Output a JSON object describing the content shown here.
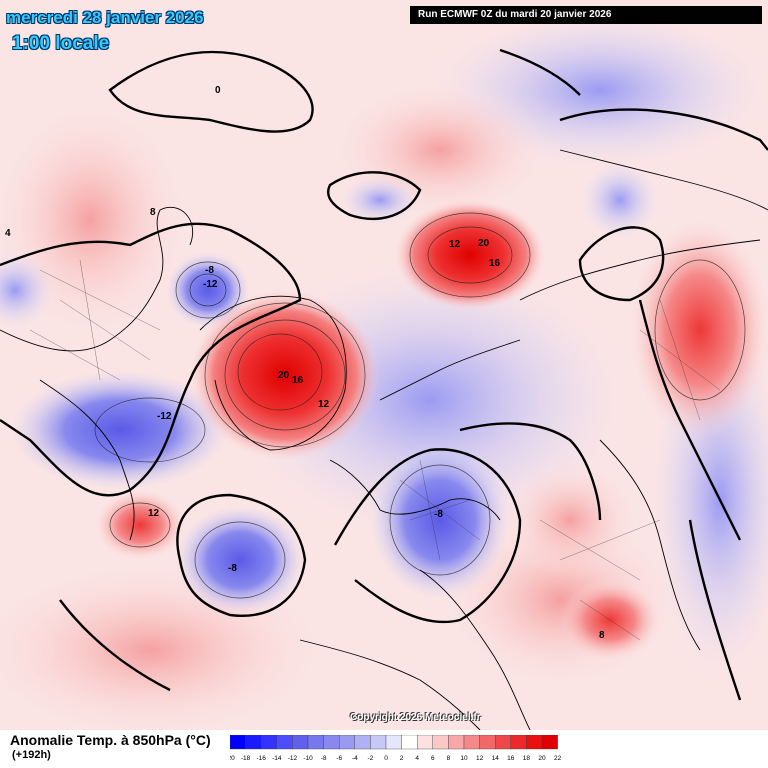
{
  "header": {
    "date_title": "mercredi 28 janvier 2026",
    "local_time": "1:00 locale",
    "run_info": "Run ECMWF 0Z du mardi 20 janvier 2026"
  },
  "copyright": "Copyright 2026 Meteociel.fr",
  "legend": {
    "title": "Anomalie Temp. à 850hPa (°C)",
    "lead_time": "(+192h)",
    "ticks": [
      "-20",
      "-18",
      "-16",
      "-14",
      "-12",
      "-10",
      "-8",
      "-6",
      "-4",
      "-2",
      "0",
      "2",
      "4",
      "6",
      "8",
      "10",
      "12",
      "14",
      "16",
      "18",
      "20",
      "22"
    ],
    "colors": [
      "#0000ff",
      "#1a1aff",
      "#3333ff",
      "#4d4dff",
      "#6060ee",
      "#7777ee",
      "#8888ee",
      "#9a9af2",
      "#b0b0f5",
      "#c8c8f8",
      "#e6e6fb",
      "#ffffff",
      "#fde0e0",
      "#fbc8c8",
      "#f8a8a8",
      "#f58888",
      "#f26868",
      "#f04848",
      "#ee2828",
      "#ea1010",
      "#e00000"
    ]
  },
  "contour_labels": [
    {
      "text": "0",
      "region": "arctic-top"
    },
    {
      "text": "4",
      "region": "north-america-west"
    },
    {
      "text": "8",
      "region": "alaska"
    },
    {
      "text": "-8",
      "region": "hudson-bay"
    },
    {
      "text": "-12",
      "region": "hudson-bay"
    },
    {
      "text": "20",
      "region": "greenland"
    },
    {
      "text": "16",
      "region": "greenland"
    },
    {
      "text": "12",
      "region": "greenland"
    },
    {
      "text": "20",
      "region": "siberia"
    },
    {
      "text": "12",
      "region": "siberia"
    },
    {
      "text": "16",
      "region": "siberia"
    },
    {
      "text": "-12",
      "region": "eastern-usa"
    },
    {
      "text": "-8",
      "region": "atlantic"
    },
    {
      "text": "-8",
      "region": "europe"
    },
    {
      "text": "12",
      "region": "pacific"
    },
    {
      "text": "8",
      "region": "china"
    }
  ]
}
